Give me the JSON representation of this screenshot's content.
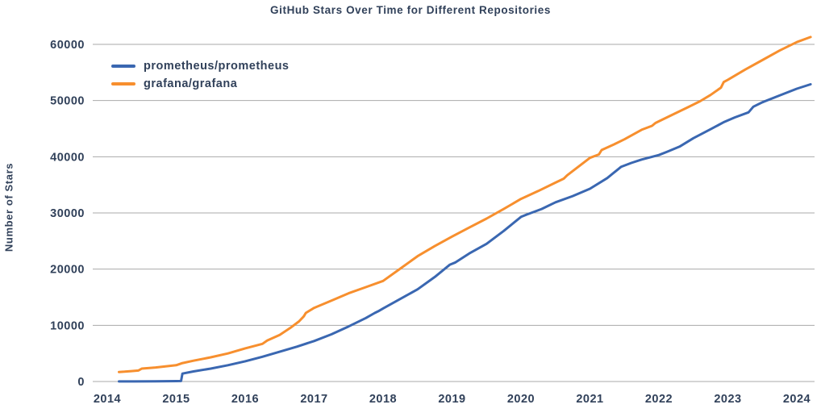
{
  "chart_data": {
    "type": "line",
    "title": "GitHub Stars Over Time for Different Repositories",
    "xlabel": "",
    "ylabel": "Number of Stars",
    "x_ticks": [
      2014,
      2015,
      2016,
      2017,
      2018,
      2019,
      2020,
      2021,
      2022,
      2023,
      2024
    ],
    "y_ticks": [
      0,
      10000,
      20000,
      30000,
      40000,
      50000,
      60000
    ],
    "xlim": [
      2014.0,
      2024.25
    ],
    "ylim": [
      0,
      62500
    ],
    "grid": "horizontal-only",
    "legend_position": "top-left-inside",
    "colors": {
      "text": "#31415A",
      "gridline": "#A9A9A9",
      "background": "#FFFFFF"
    },
    "series": [
      {
        "name": "prometheus/prometheus",
        "color": "#3A67B1",
        "points": [
          [
            2014.17,
            10
          ],
          [
            2014.4,
            20
          ],
          [
            2014.7,
            40
          ],
          [
            2015.0,
            70
          ],
          [
            2015.07,
            90
          ],
          [
            2015.09,
            1400
          ],
          [
            2015.25,
            1800
          ],
          [
            2015.5,
            2300
          ],
          [
            2015.75,
            2900
          ],
          [
            2016.0,
            3600
          ],
          [
            2016.25,
            4400
          ],
          [
            2016.5,
            5300
          ],
          [
            2016.75,
            6200
          ],
          [
            2017.0,
            7200
          ],
          [
            2017.25,
            8400
          ],
          [
            2017.5,
            9800
          ],
          [
            2017.75,
            11300
          ],
          [
            2017.88,
            12200
          ],
          [
            2017.93,
            12500
          ],
          [
            2018.0,
            13000
          ],
          [
            2018.25,
            14700
          ],
          [
            2018.5,
            16400
          ],
          [
            2018.75,
            18600
          ],
          [
            2018.97,
            20800
          ],
          [
            2019.05,
            21200
          ],
          [
            2019.25,
            22800
          ],
          [
            2019.5,
            24500
          ],
          [
            2019.75,
            26800
          ],
          [
            2020.0,
            29300
          ],
          [
            2020.08,
            29700
          ],
          [
            2020.3,
            30700
          ],
          [
            2020.5,
            31900
          ],
          [
            2020.75,
            33000
          ],
          [
            2021.0,
            34300
          ],
          [
            2021.25,
            36200
          ],
          [
            2021.45,
            38200
          ],
          [
            2021.6,
            38900
          ],
          [
            2021.75,
            39500
          ],
          [
            2022.0,
            40300
          ],
          [
            2022.12,
            40900
          ],
          [
            2022.3,
            41800
          ],
          [
            2022.5,
            43300
          ],
          [
            2022.75,
            44900
          ],
          [
            2022.95,
            46200
          ],
          [
            2023.1,
            47000
          ],
          [
            2023.3,
            47900
          ],
          [
            2023.37,
            48900
          ],
          [
            2023.5,
            49700
          ],
          [
            2023.75,
            50900
          ],
          [
            2024.0,
            52100
          ],
          [
            2024.2,
            52900
          ]
        ]
      },
      {
        "name": "grafana/grafana",
        "color": "#F78F2E",
        "points": [
          [
            2014.17,
            1700
          ],
          [
            2014.25,
            1750
          ],
          [
            2014.35,
            1850
          ],
          [
            2014.45,
            1950
          ],
          [
            2014.5,
            2300
          ],
          [
            2014.7,
            2500
          ],
          [
            2015.0,
            2900
          ],
          [
            2015.08,
            3250
          ],
          [
            2015.25,
            3700
          ],
          [
            2015.5,
            4300
          ],
          [
            2015.75,
            5000
          ],
          [
            2016.0,
            5900
          ],
          [
            2016.25,
            6700
          ],
          [
            2016.32,
            7300
          ],
          [
            2016.5,
            8300
          ],
          [
            2016.65,
            9500
          ],
          [
            2016.78,
            10700
          ],
          [
            2016.85,
            11600
          ],
          [
            2016.88,
            12200
          ],
          [
            2017.0,
            13100
          ],
          [
            2017.25,
            14400
          ],
          [
            2017.5,
            15700
          ],
          [
            2017.75,
            16800
          ],
          [
            2018.0,
            17900
          ],
          [
            2018.25,
            20100
          ],
          [
            2018.5,
            22300
          ],
          [
            2018.75,
            24100
          ],
          [
            2019.0,
            25800
          ],
          [
            2019.25,
            27400
          ],
          [
            2019.5,
            29000
          ],
          [
            2019.75,
            30700
          ],
          [
            2020.0,
            32500
          ],
          [
            2020.25,
            33900
          ],
          [
            2020.5,
            35400
          ],
          [
            2020.62,
            36100
          ],
          [
            2020.67,
            36700
          ],
          [
            2021.0,
            39800
          ],
          [
            2021.13,
            40400
          ],
          [
            2021.17,
            41200
          ],
          [
            2021.35,
            42200
          ],
          [
            2021.5,
            43100
          ],
          [
            2021.75,
            44800
          ],
          [
            2021.9,
            45500
          ],
          [
            2021.95,
            46000
          ],
          [
            2022.0,
            46300
          ],
          [
            2022.25,
            47800
          ],
          [
            2022.42,
            48800
          ],
          [
            2022.6,
            49900
          ],
          [
            2022.75,
            51000
          ],
          [
            2022.9,
            52300
          ],
          [
            2022.94,
            53300
          ],
          [
            2023.0,
            53700
          ],
          [
            2023.25,
            55500
          ],
          [
            2023.5,
            57200
          ],
          [
            2023.75,
            58900
          ],
          [
            2024.0,
            60400
          ],
          [
            2024.2,
            61300
          ]
        ]
      }
    ]
  }
}
